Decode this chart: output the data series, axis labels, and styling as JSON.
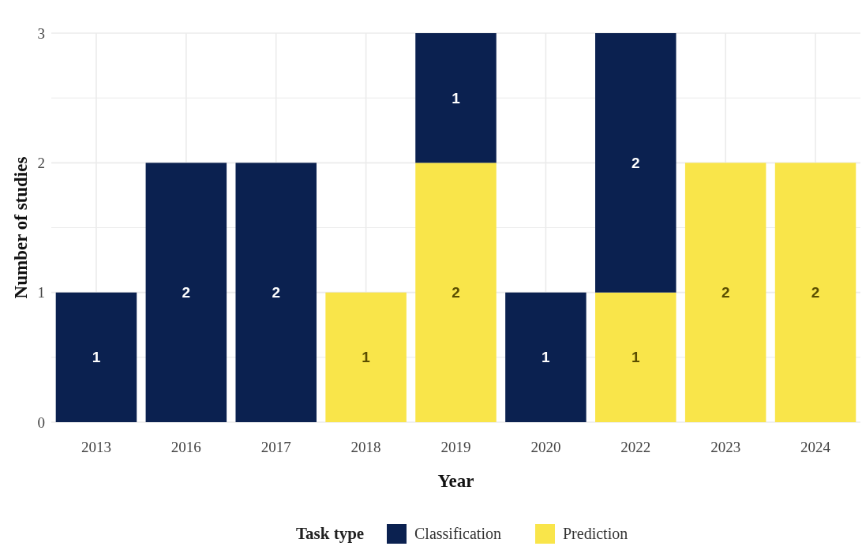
{
  "chart_data": {
    "type": "bar",
    "stacked": true,
    "xlabel": "Year",
    "ylabel": "Number of studies",
    "legend_title": "Task type",
    "legend": "bottom",
    "grid": true,
    "data_labels": true,
    "categories": [
      "2013",
      "2016",
      "2017",
      "2018",
      "2019",
      "2020",
      "2022",
      "2023",
      "2024"
    ],
    "ylim": [
      0,
      3
    ],
    "yticks": [
      0,
      {
        "value": 0.5,
        "label": null
      },
      1,
      {
        "value": 1.5,
        "label": null
      },
      2,
      {
        "value": 2.5,
        "label": null
      },
      3
    ],
    "series": [
      {
        "name": "Prediction",
        "color": "#f9e54a",
        "values": [
          null,
          null,
          null,
          1,
          2,
          null,
          1,
          2,
          2
        ]
      },
      {
        "name": "Classification",
        "color": "#0b2150",
        "values": [
          1,
          2,
          2,
          null,
          1,
          1,
          2,
          null,
          null
        ]
      }
    ]
  }
}
